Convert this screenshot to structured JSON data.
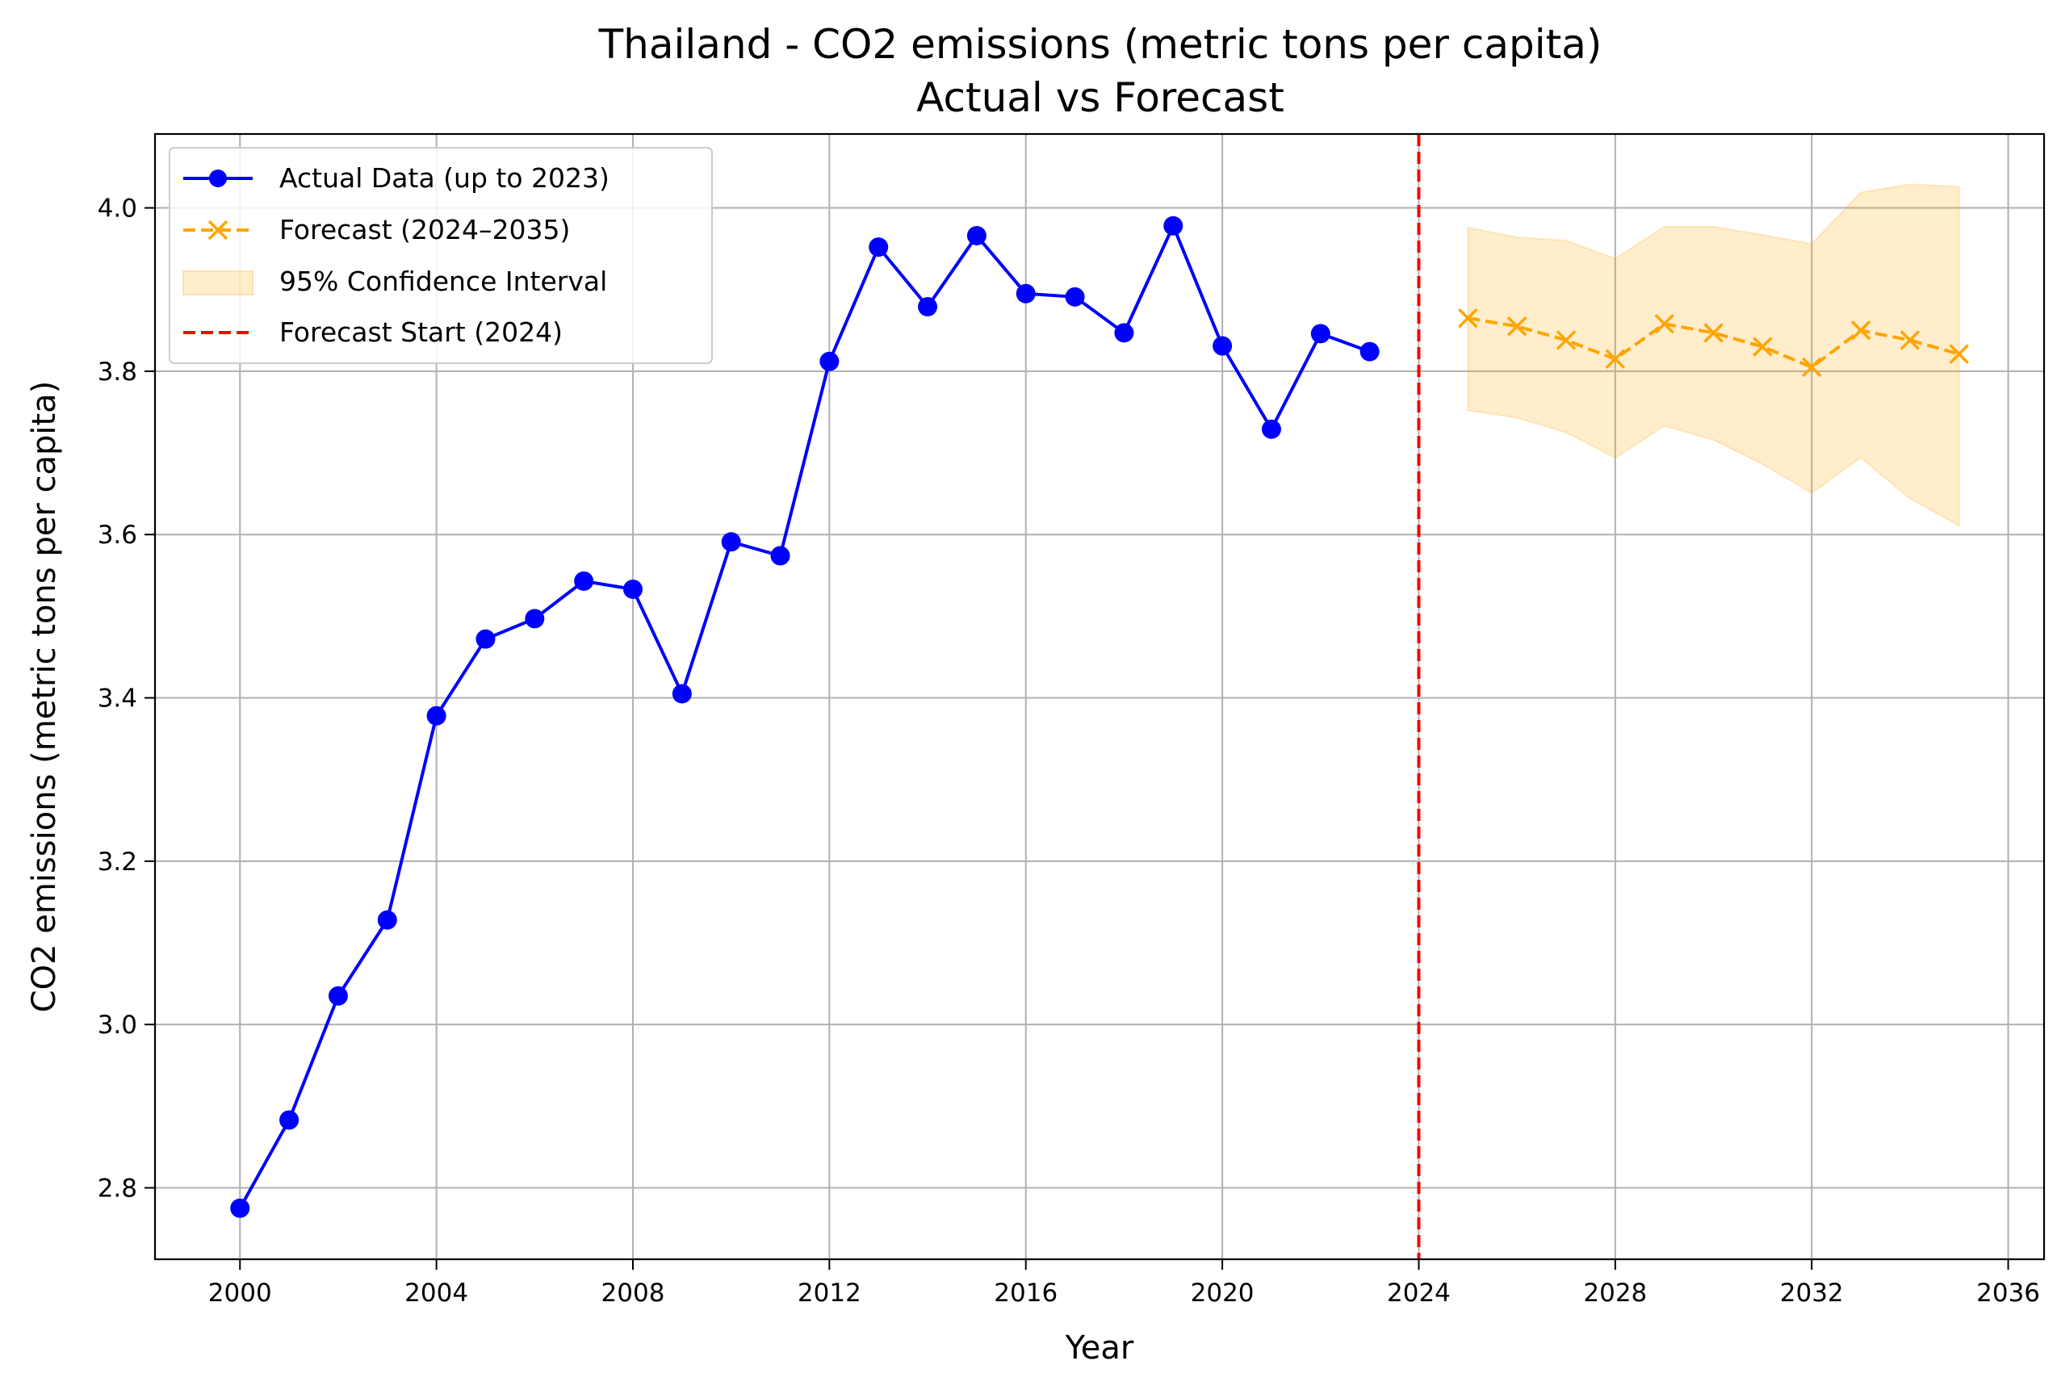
{
  "chart_data": {
    "type": "line",
    "title": "Thailand - CO2 emissions (metric tons per capita)",
    "subtitle": "Actual vs Forecast",
    "xlabel": "Year",
    "ylabel": "CO2 emissions (metric tons per capita)",
    "xlim": [
      1998.27,
      2036.73
    ],
    "ylim": [
      2.7125,
      4.0905
    ],
    "x_ticks": [
      2000,
      2004,
      2008,
      2012,
      2016,
      2020,
      2024,
      2028,
      2032,
      2036
    ],
    "y_ticks": [
      2.8,
      3.0,
      3.2,
      3.4,
      3.6,
      3.8,
      4.0
    ],
    "grid": true,
    "legend_position": "upper-left",
    "series": [
      {
        "name": "Actual Data (up to 2023)",
        "color": "#0000ff",
        "marker": "circle",
        "line_style": "solid",
        "x": [
          2000,
          2001,
          2002,
          2003,
          2004,
          2005,
          2006,
          2007,
          2008,
          2009,
          2010,
          2011,
          2012,
          2013,
          2014,
          2015,
          2016,
          2017,
          2018,
          2019,
          2020,
          2021,
          2022,
          2023
        ],
        "y": [
          2.775,
          2.883,
          3.035,
          3.128,
          3.378,
          3.472,
          3.497,
          3.543,
          3.533,
          3.405,
          3.591,
          3.574,
          3.812,
          3.952,
          3.879,
          3.966,
          3.895,
          3.891,
          3.847,
          3.978,
          3.831,
          3.729,
          3.846,
          3.824
        ]
      },
      {
        "name": "Forecast (2024–2035)",
        "color": "#ffa500",
        "marker": "x",
        "line_style": "dashed",
        "x": [
          2025,
          2026,
          2027,
          2028,
          2029,
          2030,
          2031,
          2032,
          2033,
          2034,
          2035
        ],
        "y": [
          3.865,
          3.855,
          3.838,
          3.815,
          3.858,
          3.847,
          3.83,
          3.805,
          3.85,
          3.838,
          3.821
        ]
      }
    ],
    "confidence_interval": {
      "name": "95% Confidence Interval",
      "color": "#ffa500",
      "x": [
        2025,
        2026,
        2027,
        2028,
        2029,
        2030,
        2031,
        2032,
        2033,
        2034,
        2035
      ],
      "lower": [
        3.752,
        3.743,
        3.725,
        3.694,
        3.733,
        3.716,
        3.686,
        3.651,
        3.694,
        3.644,
        3.611
      ],
      "upper": [
        3.976,
        3.964,
        3.96,
        3.938,
        3.977,
        3.977,
        3.967,
        3.956,
        4.019,
        4.029,
        4.026
      ]
    },
    "vertical_line": {
      "name": "Forecast Start (2024)",
      "x": 2024,
      "color": "#ff0000",
      "line_style": "dashed"
    }
  }
}
